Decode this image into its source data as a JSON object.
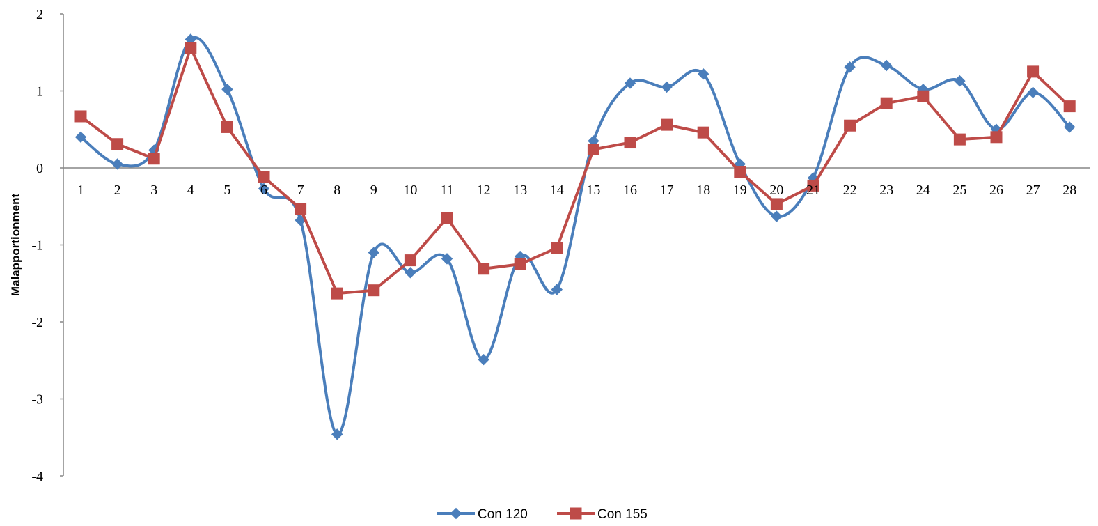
{
  "chart_data": {
    "type": "line",
    "title": "",
    "xlabel": "",
    "ylabel": "Malapportionment",
    "ylim": [
      -4,
      2
    ],
    "yticks": [
      "2",
      "1",
      "0",
      "-1",
      "-2",
      "-3",
      "-4"
    ],
    "ytick_values": [
      2,
      1,
      0,
      -1,
      -2,
      -3,
      -4
    ],
    "categories": [
      "1",
      "2",
      "3",
      "4",
      "5",
      "6",
      "7",
      "8",
      "9",
      "10",
      "11",
      "12",
      "13",
      "14",
      "15",
      "16",
      "17",
      "18",
      "19",
      "20",
      "21",
      "22",
      "23",
      "24",
      "25",
      "26",
      "27",
      "28"
    ],
    "grid": false,
    "legend_position": "bottom",
    "series": [
      {
        "name": "Con 120",
        "color": "#4a7ebb",
        "marker": "diamond",
        "smooth": true,
        "values": [
          0.4,
          0.05,
          0.23,
          1.67,
          1.02,
          -0.27,
          -0.68,
          -3.46,
          -1.1,
          -1.36,
          -1.18,
          -2.49,
          -1.15,
          -1.58,
          0.35,
          1.1,
          1.05,
          1.22,
          0.05,
          -0.63,
          -0.13,
          1.31,
          1.33,
          1.02,
          1.13,
          0.5,
          0.98,
          0.53
        ]
      },
      {
        "name": "Con 155",
        "color": "#be4b48",
        "marker": "square",
        "smooth": false,
        "values": [
          0.67,
          0.31,
          0.12,
          1.56,
          0.53,
          -0.12,
          -0.53,
          -1.63,
          -1.59,
          -1.2,
          -0.65,
          -1.31,
          -1.25,
          -1.04,
          0.24,
          0.33,
          0.56,
          0.46,
          -0.05,
          -0.47,
          -0.23,
          0.55,
          0.84,
          0.93,
          0.37,
          0.4,
          1.25,
          0.8
        ]
      }
    ]
  }
}
